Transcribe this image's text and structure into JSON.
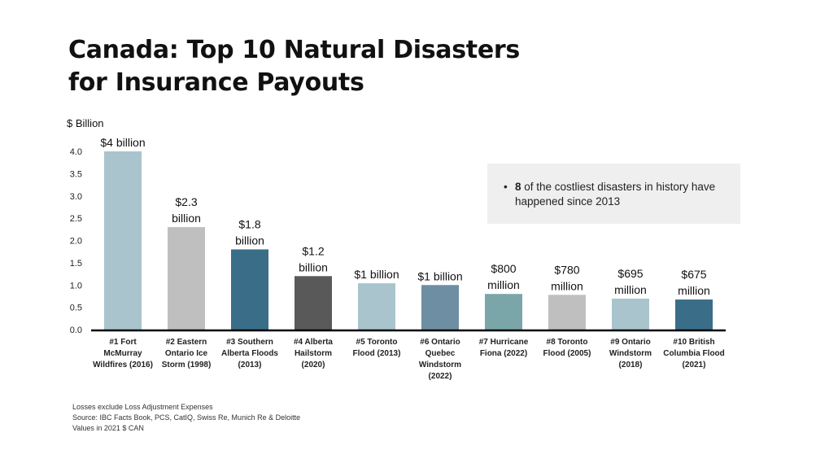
{
  "title_line1": "Canada: Top 10 Natural Disasters",
  "title_line2": "for Insurance Payouts",
  "callout": {
    "bold": "8",
    "text": " of the costliest disasters in history have happened since 2013"
  },
  "footnotes": [
    "Losses exclude Loss Adjustment Expenses",
    "Source: IBC Facts Book, PCS, CatIQ, Swiss Re, Munich Re & Deloitte",
    "Values in 2021 $ CAN"
  ],
  "chart_data": {
    "type": "bar",
    "ylabel": "$ Billion",
    "ylim": [
      0,
      4.0
    ],
    "yticks": [
      "0.0",
      "0.5",
      "1.0",
      "1.5",
      "2.0",
      "2.5",
      "3.0",
      "3.5",
      "4.0"
    ],
    "grid": false,
    "categories": [
      [
        "#1 Fort",
        "McMurray",
        "Wildfires (2016)"
      ],
      [
        "#2 Eastern",
        "Ontario Ice",
        "Storm (1998)"
      ],
      [
        "#3 Southern",
        "Alberta Floods",
        "(2013)"
      ],
      [
        "#4 Alberta",
        "Hailstorm",
        "(2020)"
      ],
      [
        "#5 Toronto",
        "Flood (2013)"
      ],
      [
        "#6 Ontario",
        "Quebec",
        "Windstorm",
        "(2022)"
      ],
      [
        "#7 Hurricane",
        "Fiona (2022)"
      ],
      [
        "#8 Toronto",
        "Flood (2005)"
      ],
      [
        "#9 Ontario",
        "Windstorm",
        "(2018)"
      ],
      [
        "#10 British",
        "Columbia Flood",
        "(2021)"
      ]
    ],
    "values": [
      4.0,
      2.3,
      1.8,
      1.2,
      1.04,
      1.0,
      0.8,
      0.78,
      0.695,
      0.675
    ],
    "data_labels": [
      [
        "$4 billion"
      ],
      [
        "$2.3",
        "billion"
      ],
      [
        "$1.8",
        "billion"
      ],
      [
        "$1.2",
        "billion"
      ],
      [
        "$1 billion"
      ],
      [
        "$1 billion"
      ],
      [
        "$800",
        "million"
      ],
      [
        "$780",
        "million"
      ],
      [
        "$695",
        "million"
      ],
      [
        "$675",
        "million"
      ]
    ],
    "colors": [
      "#a9c4cc",
      "#bfbfbf",
      "#3a6d88",
      "#595959",
      "#a9c4cc",
      "#6e8fa3",
      "#7aa6aa",
      "#bfbfbf",
      "#a9c4cc",
      "#3a6d88"
    ]
  }
}
